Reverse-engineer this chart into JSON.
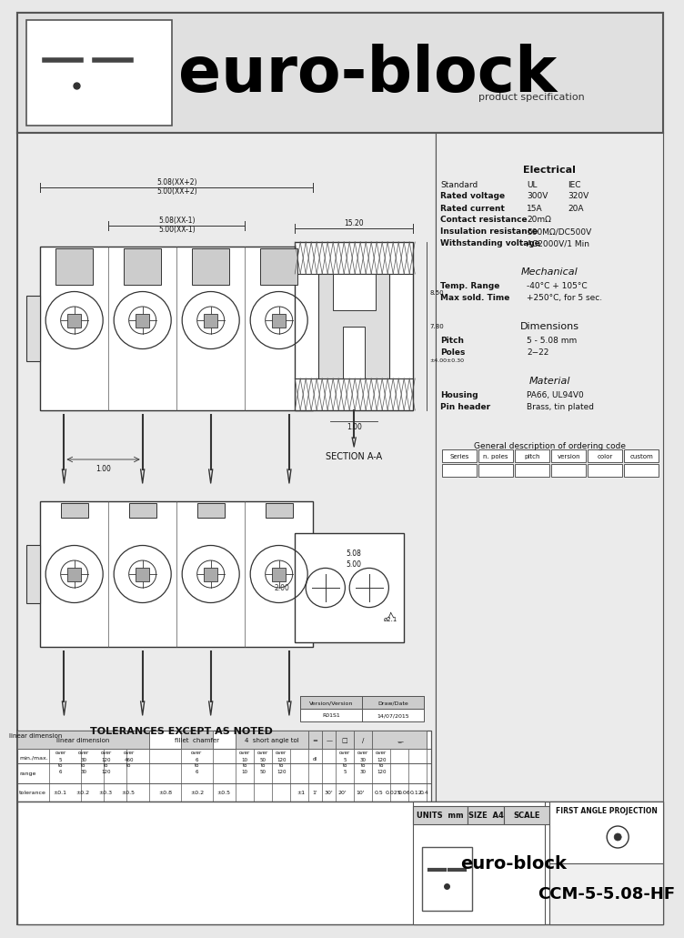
{
  "bg_color": "#e8e8e8",
  "white": "#ffffff",
  "light_gray": "#d0d0d0",
  "dark": "#222222",
  "mid_gray": "#888888",
  "electrical_title": "Electrical",
  "electrical_data": [
    [
      "Standard",
      "UL",
      "IEC"
    ],
    [
      "Rated voltage",
      "300V",
      "320V"
    ],
    [
      "Rated current",
      "15A",
      "20A"
    ],
    [
      "Contact resistance",
      "20mΩ",
      ""
    ],
    [
      "Insulation resistance",
      "500MΩ/DC500V",
      ""
    ],
    [
      "Withstanding voltage",
      "AC2000V/1 Min",
      ""
    ]
  ],
  "electrical_bold": [
    "Rated voltage",
    "Rated current",
    "Contact resistance",
    "Insulation resistance",
    "Withstanding voltage"
  ],
  "mechanical_title": "Mechanical",
  "mechanical_data": [
    [
      "Temp. Range",
      "-40°C + 105°C"
    ],
    [
      "Max sold. Time",
      "+250°C, for 5 sec."
    ]
  ],
  "mechanical_bold": [
    "Temp. Range",
    "Max sold. Time"
  ],
  "dimensions_title": "Dimensions",
  "dimensions_data": [
    [
      "Pitch",
      "5 - 5.08 mm"
    ],
    [
      "Poles",
      "2−22"
    ]
  ],
  "dimensions_bold": [
    "Pitch",
    "Poles"
  ],
  "material_title": "Material",
  "material_data": [
    [
      "Housing",
      "PA66, UL94V0"
    ],
    [
      "Pin header",
      "Brass, tin plated"
    ]
  ],
  "material_bold": [
    "Housing",
    "Pin header"
  ],
  "ordering_title": "General description of ordering code",
  "ordering_boxes": [
    "Series",
    "n. poles",
    "pitch",
    "version",
    "color",
    "custom"
  ],
  "tolerance_title": "TOLERANCES EXCEPT AS NOTED",
  "footer_partno": "CCM-5-5.08-HF",
  "footer_projection": "FIRST ANGLE PROJECTION",
  "section_label": "SECTION A-A",
  "version_label": "Version/Version",
  "date_label": "Draw/Date",
  "version_val": "R01S1",
  "date_val": "14/07/2015",
  "num_poles": 4
}
